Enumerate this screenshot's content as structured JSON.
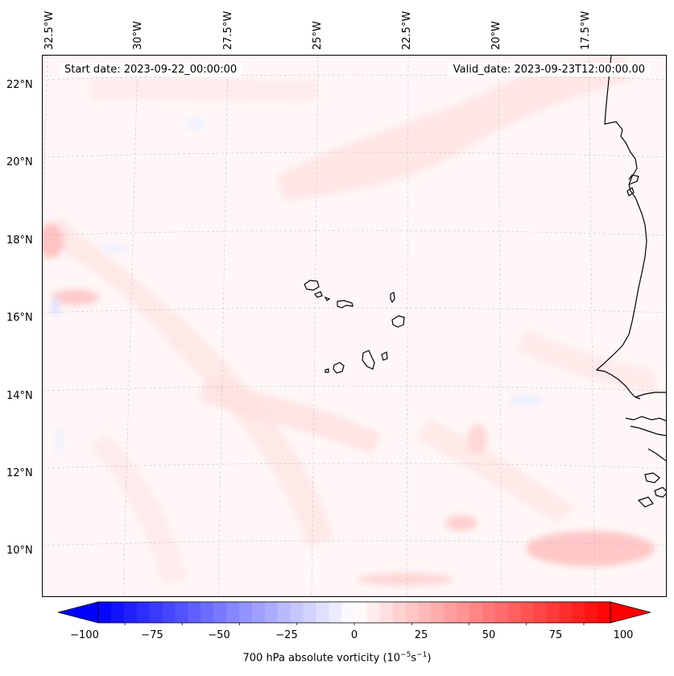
{
  "map": {
    "start_date": "Start date: 2023-09-22_00:00:00",
    "valid_date": "Valid_date: 2023-09-23T12:00:00.00",
    "lon_ticks": [
      "32.5°W",
      "30°W",
      "27.5°W",
      "25°W",
      "22.5°W",
      "20°W",
      "17.5°W"
    ],
    "lat_ticks": [
      "22°N",
      "20°N",
      "18°N",
      "16°N",
      "14°N",
      "12°N",
      "10°N"
    ],
    "features": [
      "Cape Verde islands",
      "West African coastline"
    ]
  },
  "colorbar": {
    "label_prefix": "700 hPa absolute vorticity (10",
    "label_exp1": "−5",
    "label_mid": "s",
    "label_exp2": "−1",
    "label_suffix": ")",
    "ticks": [
      "−100",
      "−75",
      "−50",
      "−25",
      "0",
      "25",
      "50",
      "75",
      "100"
    ],
    "min": -100,
    "max": 100,
    "levels": 40,
    "colors": {
      "negative": "#0000ff",
      "zero": "#ffffff",
      "positive": "#ff0000"
    }
  }
}
